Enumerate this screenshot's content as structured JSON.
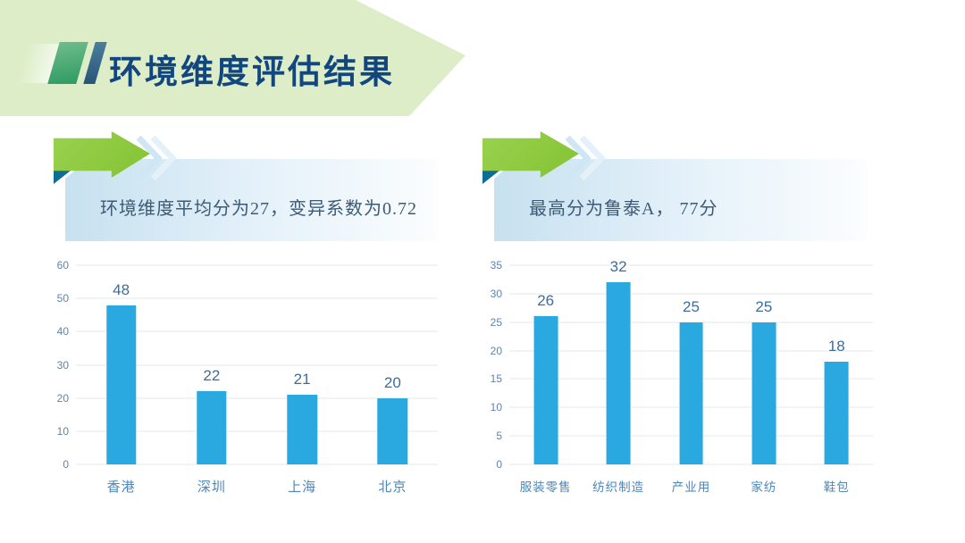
{
  "header": {
    "title": "环境维度评估结果"
  },
  "callouts": [
    {
      "text": "环境维度平均分为27，变异系数为0.72"
    },
    {
      "text": "最高分为鲁泰A， 77分"
    }
  ],
  "icons": {
    "callout_arrow": "green-right-arrow",
    "callout_chevrons": "double-chevron-right",
    "fold": "folded-corner-triangle"
  },
  "colors": {
    "banner_green": "#dcedc7",
    "title_navy": "#11467e",
    "slash_green": "#3fa169",
    "slash_blue": "#3c6d8c",
    "arrow_green": "#8cc63f",
    "fold_teal": "#0e6d93",
    "chevron_blue": "#cfe7f4",
    "callout_box_start": "#c7e1f0",
    "callout_box_end": "#fbfdfe",
    "callout_text": "#3c5a77",
    "bar_blue": "#29a9df",
    "grid_gray": "#e4e7ea",
    "axis_tick_blue": "#5d84ad",
    "value_label_blue": "#3d6d9c",
    "category_label_blue": "#4d87b7"
  },
  "chart_data": [
    {
      "type": "bar",
      "title": "",
      "categories": [
        "香港",
        "深圳",
        "上海",
        "北京"
      ],
      "values": [
        48,
        22,
        21,
        20
      ],
      "xlabel": "",
      "ylabel": "",
      "ylim": [
        0,
        60
      ],
      "ytick_step": 10,
      "grid": true,
      "legend": "none",
      "bar_color": "#29a9df"
    },
    {
      "type": "bar",
      "title": "",
      "categories": [
        "服装零售",
        "纺织制造",
        "产业用",
        "家纺",
        "鞋包"
      ],
      "values": [
        26,
        32,
        25,
        25,
        18
      ],
      "xlabel": "",
      "ylabel": "",
      "ylim": [
        0,
        35
      ],
      "ytick_step": 5,
      "grid": true,
      "legend": "none",
      "bar_color": "#29a9df"
    }
  ]
}
